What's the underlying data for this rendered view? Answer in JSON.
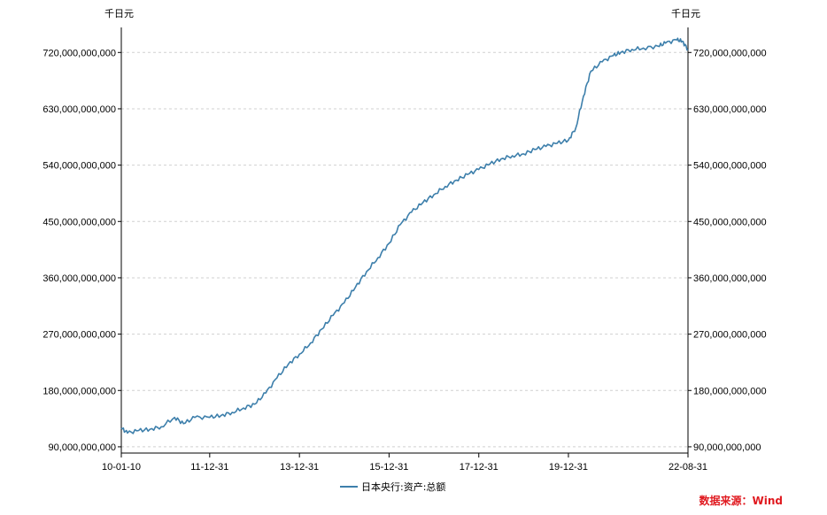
{
  "chart_data": {
    "type": "line",
    "unit_left": "千日元",
    "unit_right": "千日元",
    "ylim": [
      80000000000,
      760000000000
    ],
    "y_ticks": [
      90000000000,
      180000000000,
      270000000000,
      360000000000,
      450000000000,
      540000000000,
      630000000000,
      720000000000
    ],
    "y_tick_labels": [
      "90,000,000,000",
      "180,000,000,000",
      "270,000,000,000",
      "360,000,000,000",
      "450,000,000,000",
      "540,000,000,000",
      "630,000,000,000",
      "720,000,000,000"
    ],
    "x_range": [
      "2010-01-10",
      "2022-08-31"
    ],
    "x_ticks": [
      "2010-01-10",
      "2011-12-31",
      "2013-12-31",
      "2015-12-31",
      "2017-12-31",
      "2019-12-31",
      "2022-08-31"
    ],
    "x_tick_labels": [
      "10-01-10",
      "11-12-31",
      "13-12-31",
      "15-12-31",
      "17-12-31",
      "19-12-31",
      "22-08-31"
    ],
    "grid": true,
    "legend_position": "bottom",
    "series": [
      {
        "name": "日本央行:资产:总额",
        "color": "#3d7fab",
        "x": [
          "2010-01-10",
          "2010-03-01",
          "2010-06-01",
          "2010-09-01",
          "2010-12-01",
          "2011-03-20",
          "2011-06-01",
          "2011-09-01",
          "2011-12-31",
          "2012-04-01",
          "2012-07-01",
          "2012-10-01",
          "2012-12-31",
          "2013-04-01",
          "2013-07-01",
          "2013-10-01",
          "2013-12-31",
          "2014-04-01",
          "2014-07-01",
          "2014-10-01",
          "2014-12-31",
          "2015-04-01",
          "2015-07-01",
          "2015-10-01",
          "2015-12-31",
          "2016-04-01",
          "2016-07-01",
          "2016-10-01",
          "2016-12-31",
          "2017-04-01",
          "2017-07-01",
          "2017-10-01",
          "2017-12-31",
          "2018-04-01",
          "2018-07-01",
          "2018-10-01",
          "2018-12-31",
          "2019-04-01",
          "2019-07-01",
          "2019-10-01",
          "2019-12-31",
          "2020-03-01",
          "2020-05-01",
          "2020-07-01",
          "2020-10-01",
          "2020-12-31",
          "2021-03-01",
          "2021-06-01",
          "2021-09-01",
          "2021-12-31",
          "2022-03-01",
          "2022-06-01",
          "2022-07-15",
          "2022-08-31"
        ],
        "values": [
          120000000000,
          112000000000,
          116000000000,
          118000000000,
          122000000000,
          137000000000,
          127000000000,
          137000000000,
          137000000000,
          140000000000,
          145000000000,
          152000000000,
          158000000000,
          176000000000,
          200000000000,
          222000000000,
          238000000000,
          256000000000,
          278000000000,
          300000000000,
          320000000000,
          345000000000,
          370000000000,
          392000000000,
          415000000000,
          445000000000,
          465000000000,
          480000000000,
          493000000000,
          506000000000,
          516000000000,
          525000000000,
          533000000000,
          542000000000,
          550000000000,
          555000000000,
          558000000000,
          565000000000,
          570000000000,
          575000000000,
          580000000000,
          600000000000,
          650000000000,
          690000000000,
          705000000000,
          715000000000,
          720000000000,
          725000000000,
          727000000000,
          730000000000,
          735000000000,
          740000000000,
          738000000000,
          725000000000
        ]
      }
    ],
    "source": "数据来源：Wind"
  }
}
